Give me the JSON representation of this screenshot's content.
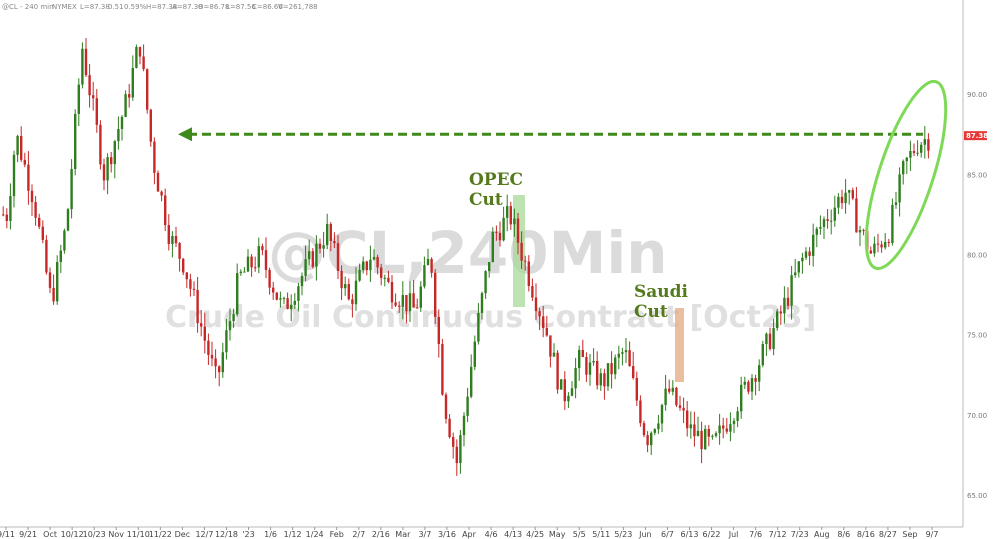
{
  "header": {
    "symbol": "@CL - 240 min",
    "exchange": "NYMEX",
    "last": "L=87.38",
    "change": "0.51",
    "change_pct": "0.59%",
    "high": "H=87.38",
    "low": "A=87.38",
    "open": "O=86.78",
    "l2": "L=87.56",
    "close": "C=86.66",
    "volume": "V=261,788"
  },
  "watermark": {
    "line1": "@CL,240Min",
    "line2": "Crude Oil Continuous Contract [Oct23]"
  },
  "annotations": {
    "opec": [
      "OPEC",
      "Cut"
    ],
    "saudi": [
      "Saudi",
      "Cut"
    ]
  },
  "colors": {
    "up": "#2e7d1f",
    "down": "#c62828",
    "arrow": "#3f8a1c",
    "ellipse": "#7ed957",
    "opec_band": "#a8d99a",
    "saudi_band": "#e3a882",
    "price_tag": "#e53935"
  },
  "price_tag": "87.38",
  "chart_data": {
    "type": "candlestick",
    "title": "@CL,240Min",
    "subtitle": "Crude Oil Continuous Contract [Oct23]",
    "x_ticks": [
      "9/11",
      "9/21",
      "Oct",
      "10/12",
      "10/23",
      "Nov",
      "11/10",
      "11/22",
      "Dec",
      "12/7",
      "12/18",
      "'23",
      "1/6",
      "1/12",
      "1/24",
      "Feb",
      "2/7",
      "2/16",
      "Mar",
      "3/7",
      "3/16",
      "Apr",
      "4/6",
      "4/13",
      "4/25",
      "May",
      "5/5",
      "5/11",
      "5/23",
      "Jun",
      "6/7",
      "6/13",
      "6/22",
      "Jul",
      "7/6",
      "7/12",
      "7/23",
      "Aug",
      "8/6",
      "8/16",
      "8/27",
      "Sep",
      "9/7"
    ],
    "y_ticks": [
      65,
      70,
      75,
      80,
      85,
      90
    ],
    "ylim": [
      63,
      95
    ],
    "price_path": [
      {
        "x": 0,
        "y": 82.5
      },
      {
        "x": 0.4,
        "y": 87.5
      },
      {
        "x": 1.2,
        "y": 83.5
      },
      {
        "x": 2.0,
        "y": 77.0
      },
      {
        "x": 2.7,
        "y": 82.0
      },
      {
        "x": 3.4,
        "y": 93.0
      },
      {
        "x": 4.4,
        "y": 85.0
      },
      {
        "x": 5.4,
        "y": 89.5
      },
      {
        "x": 6.0,
        "y": 93.3
      },
      {
        "x": 6.6,
        "y": 86.0
      },
      {
        "x": 7.4,
        "y": 81.0
      },
      {
        "x": 8.0,
        "y": 79.5
      },
      {
        "x": 9.5,
        "y": 72.0
      },
      {
        "x": 10.5,
        "y": 78.5
      },
      {
        "x": 11.5,
        "y": 80.0
      },
      {
        "x": 12.5,
        "y": 76.5
      },
      {
        "x": 13.5,
        "y": 79.0
      },
      {
        "x": 14.5,
        "y": 81.5
      },
      {
        "x": 15.5,
        "y": 77.0
      },
      {
        "x": 16.5,
        "y": 80.0
      },
      {
        "x": 17.3,
        "y": 78.0
      },
      {
        "x": 18.5,
        "y": 76.5
      },
      {
        "x": 19.2,
        "y": 80.0
      },
      {
        "x": 19.8,
        "y": 71.0
      },
      {
        "x": 20.4,
        "y": 67.0
      },
      {
        "x": 21.2,
        "y": 74.5
      },
      {
        "x": 22.0,
        "y": 81.0
      },
      {
        "x": 22.8,
        "y": 82.5
      },
      {
        "x": 23.7,
        "y": 78.5
      },
      {
        "x": 24.5,
        "y": 75.0
      },
      {
        "x": 25.2,
        "y": 71.0
      },
      {
        "x": 26.0,
        "y": 73.5
      },
      {
        "x": 27.0,
        "y": 72.0
      },
      {
        "x": 28.0,
        "y": 74.0
      },
      {
        "x": 29.0,
        "y": 68.5
      },
      {
        "x": 30.0,
        "y": 71.5
      },
      {
        "x": 31.0,
        "y": 69.0
      },
      {
        "x": 32.0,
        "y": 68.0
      },
      {
        "x": 33.0,
        "y": 70.5
      },
      {
        "x": 34.0,
        "y": 73.0
      },
      {
        "x": 35.0,
        "y": 76.0
      },
      {
        "x": 36.0,
        "y": 79.5
      },
      {
        "x": 37.0,
        "y": 82.0
      },
      {
        "x": 38.0,
        "y": 84.0
      },
      {
        "x": 38.7,
        "y": 81.5
      },
      {
        "x": 39.2,
        "y": 80.0
      },
      {
        "x": 40.0,
        "y": 81.5
      },
      {
        "x": 40.7,
        "y": 85.5
      },
      {
        "x": 41.3,
        "y": 87.0
      },
      {
        "x": 42.0,
        "y": 87.38
      }
    ],
    "prior_high_level": 87.5,
    "events": [
      {
        "label": "OPEC Cut",
        "x": 21.4
      },
      {
        "label": "Saudi Cut",
        "x": 28.8
      }
    ],
    "last_price": 87.38,
    "grid": false,
    "legend": "none"
  }
}
